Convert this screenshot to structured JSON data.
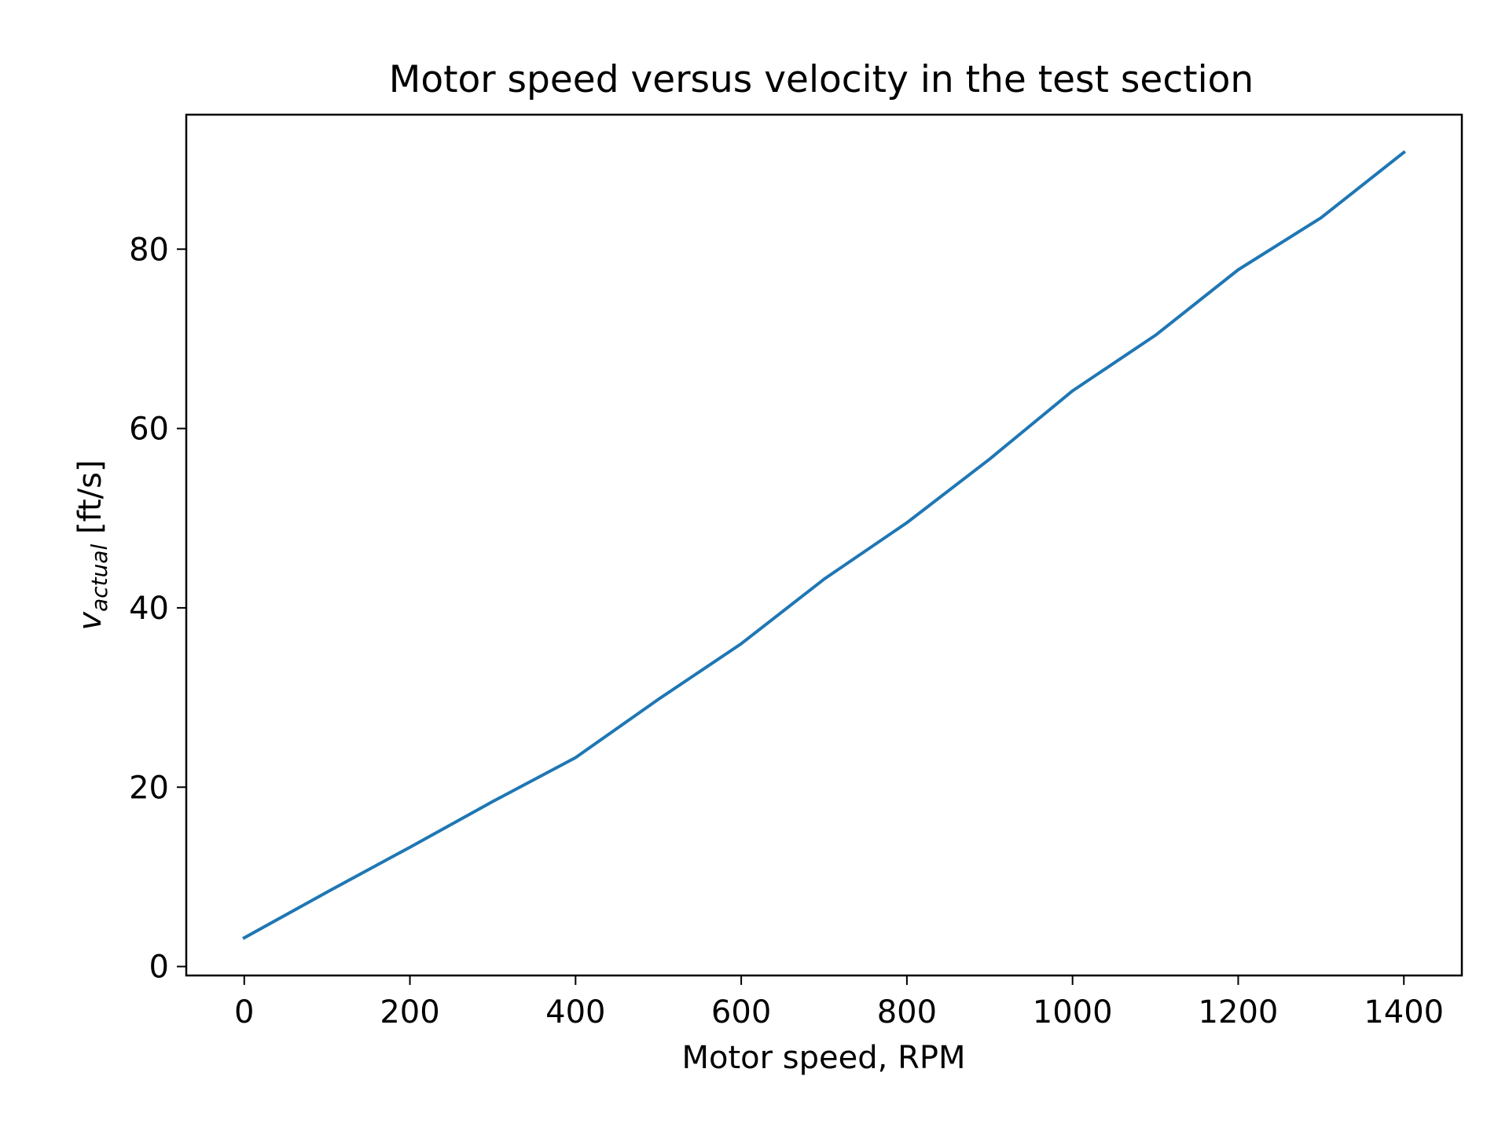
{
  "chart_data": {
    "type": "line",
    "title": "Motor speed versus velocity in the test section",
    "xlabel": "Motor speed, RPM",
    "ylabel": {
      "main": "v",
      "subscript": "actual",
      "unit": " [ft/s]"
    },
    "xlim": [
      -70,
      1470
    ],
    "ylim": [
      -1,
      95
    ],
    "xticks": [
      0,
      200,
      400,
      600,
      800,
      1000,
      1200,
      1400
    ],
    "yticks": [
      0,
      20,
      40,
      60,
      80
    ],
    "grid": false,
    "series": [
      {
        "color": "#1f77b4",
        "x": [
          0,
          100,
          200,
          300,
          400,
          500,
          600,
          700,
          800,
          900,
          1000,
          1100,
          1200,
          1300,
          1400
        ],
        "y": [
          3.2,
          8.3,
          13.3,
          18.4,
          23.3,
          29.8,
          36.0,
          43.2,
          49.5,
          56.6,
          64.2,
          70.4,
          77.7,
          83.5,
          90.8
        ]
      }
    ]
  }
}
